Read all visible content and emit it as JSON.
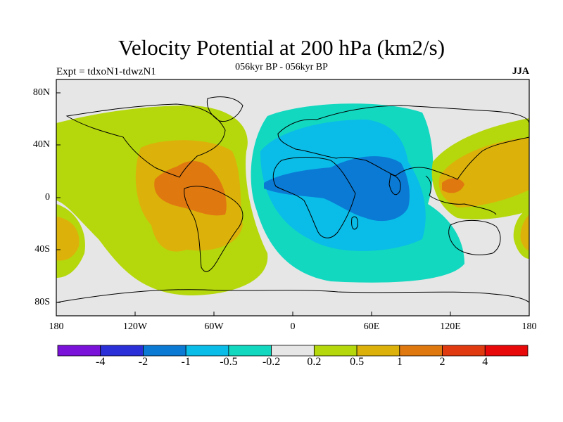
{
  "title": "Velocity Potential at 200 hPa (km2/s)",
  "subtitle": "056kyr BP - 056kyr BP",
  "left_label": "Expt = tdxoN1-tdwzN1",
  "right_label": "JJA",
  "lat_ticks": [
    "80N",
    "40N",
    "0",
    "40S",
    "80S"
  ],
  "lon_ticks": [
    "180",
    "120W",
    "60W",
    "0",
    "60E",
    "120E",
    "180"
  ],
  "colorbar": {
    "labels": [
      "-4",
      "-2",
      "-1",
      "-0.5",
      "-0.2",
      "0.2",
      "0.5",
      "1",
      "2",
      "4"
    ],
    "colors": [
      "#7a12d9",
      "#2a2fd8",
      "#0a7ad4",
      "#0abce8",
      "#12d8c0",
      "#e6e6e6",
      "#b4d80c",
      "#dcb20a",
      "#e07810",
      "#e03a10",
      "#e80a0a"
    ]
  },
  "map_colors": {
    "neutral": "#e6e6e6",
    "pos_weak": "#b4d80c",
    "pos_mid": "#dcb20a",
    "pos_strong": "#e07810",
    "neg_weak": "#12d8c0",
    "neg_mid": "#0abce8",
    "neg_strong": "#0a7ad4"
  }
}
